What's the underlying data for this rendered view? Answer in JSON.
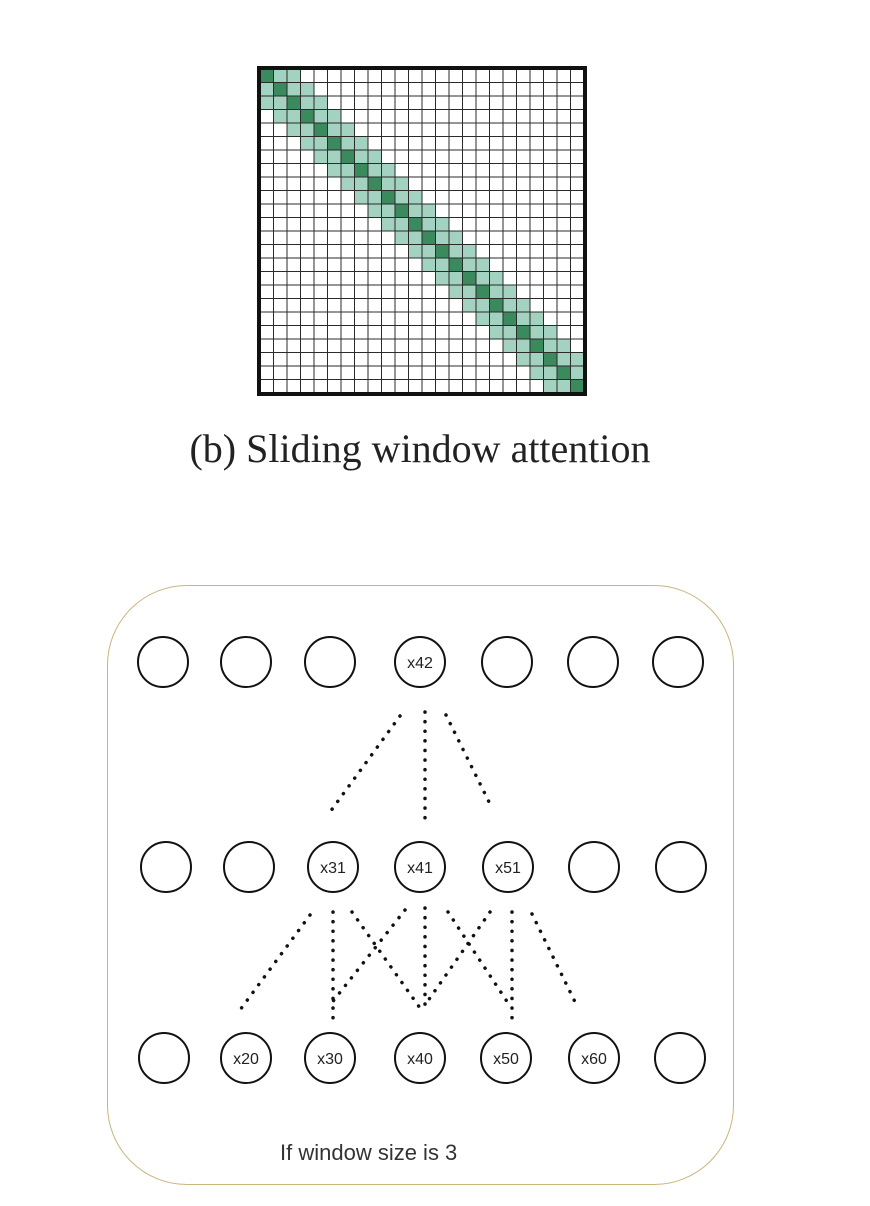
{
  "matrix": {
    "size": 24,
    "band_half_width": 2,
    "colors": {
      "band": "#a3d2c0",
      "diagonal": "#3b8a5d",
      "grid": "#2b2b2b",
      "border": "#111111",
      "empty": "#ffffff"
    }
  },
  "caption": "(b) Sliding window attention",
  "diagram": {
    "window_size": 3,
    "top_row": [
      "",
      "",
      "",
      "x42",
      "",
      "",
      ""
    ],
    "middle_row": [
      "",
      "",
      "x31",
      "x41",
      "x51",
      "",
      ""
    ],
    "bottom_row": [
      "",
      "x20",
      "x30",
      "x40",
      "x50",
      "x60",
      ""
    ],
    "caption": "If window size is 3",
    "border_color": "#c9b67c"
  }
}
